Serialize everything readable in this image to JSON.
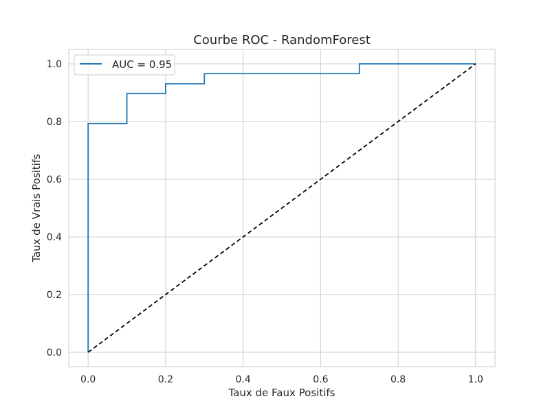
{
  "chart_data": {
    "type": "line",
    "title": "Courbe ROC - RandomForest",
    "xlabel": "Taux de Faux Positifs",
    "ylabel": "Taux de Vrais Positifs",
    "xlim": [
      -0.05,
      1.05
    ],
    "ylim": [
      -0.05,
      1.05
    ],
    "xticks": [
      0.0,
      0.2,
      0.4,
      0.6,
      0.8,
      1.0
    ],
    "yticks": [
      0.0,
      0.2,
      0.4,
      0.6,
      0.8,
      1.0
    ],
    "xtick_labels": [
      "0.0",
      "0.2",
      "0.4",
      "0.6",
      "0.8",
      "1.0"
    ],
    "ytick_labels": [
      "0.0",
      "0.2",
      "0.4",
      "0.6",
      "0.8",
      "1.0"
    ],
    "grid": true,
    "legend_position": "top-left",
    "series": [
      {
        "name": "AUC = 0.95",
        "color": "#1f77b4",
        "style": "step",
        "x": [
          0.0,
          0.0,
          0.1,
          0.1,
          0.2,
          0.2,
          0.3,
          0.3,
          0.7,
          0.7,
          1.0
        ],
        "y": [
          0.0,
          0.793,
          0.793,
          0.897,
          0.897,
          0.931,
          0.931,
          0.966,
          0.966,
          1.0,
          1.0
        ]
      },
      {
        "color": "#000000",
        "style": "dashed",
        "x": [
          0.0,
          1.0
        ],
        "y": [
          0.0,
          1.0
        ]
      }
    ]
  }
}
